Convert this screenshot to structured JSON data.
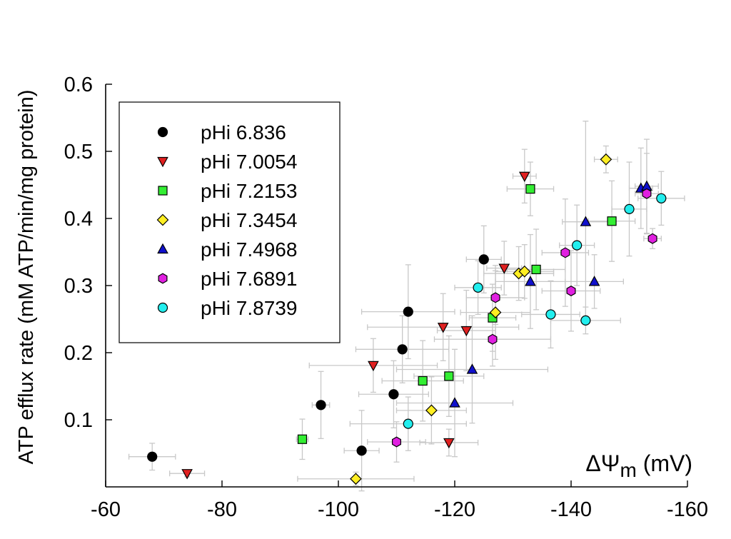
{
  "chart_data": {
    "type": "scatter",
    "title": "",
    "xlabel": "ΔΨm (mV)",
    "xlabel_main": "ΔΨ",
    "xlabel_sub": "m",
    "xlabel_unit": " (mV)",
    "ylabel": "ATP efflux rate (mM ATP/min/mg protein)",
    "xlim": [
      -60,
      -160
    ],
    "ylim": [
      0,
      0.6
    ],
    "x_ticks": [
      -60,
      -80,
      -100,
      -120,
      -140,
      -160
    ],
    "y_ticks": [
      0.1,
      0.2,
      0.3,
      0.4,
      0.5,
      0.6
    ],
    "x_tick_labels": [
      "-60",
      "-80",
      "-100",
      "-120",
      "-140",
      "-160"
    ],
    "y_tick_labels": [
      "0.1",
      "0.2",
      "0.3",
      "0.4",
      "0.5",
      "0.6"
    ],
    "grid": false,
    "legend_position": "top-left",
    "series": [
      {
        "name": "pHi 6.836",
        "marker": "circle",
        "color": "#000000",
        "points": [
          {
            "x": -68,
            "y": 0.045,
            "xerr": 4,
            "yerr": 0.02
          },
          {
            "x": -97,
            "y": 0.122,
            "xerr": 1.5,
            "yerr": 0.05
          },
          {
            "x": -104,
            "y": 0.054,
            "xerr": 3,
            "yerr": 0.06
          },
          {
            "x": -109.5,
            "y": 0.138,
            "xerr": 6,
            "yerr": 0.05
          },
          {
            "x": -111,
            "y": 0.205,
            "xerr": 8,
            "yerr": 0.05
          },
          {
            "x": -112,
            "y": 0.261,
            "xerr": 8,
            "yerr": 0.07
          },
          {
            "x": -125,
            "y": 0.339,
            "xerr": 3,
            "yerr": 0.05
          }
        ]
      },
      {
        "name": "pHi 7.0054",
        "marker": "triangle-down",
        "color": "#e02020",
        "points": [
          {
            "x": -74,
            "y": 0.02,
            "xerr": 3,
            "yerr": 0.005
          },
          {
            "x": -106,
            "y": 0.181,
            "xerr": 11,
            "yerr": 0.04
          },
          {
            "x": -118,
            "y": 0.238,
            "xerr": 13,
            "yerr": 0.05
          },
          {
            "x": -119,
            "y": 0.066,
            "xerr": 5,
            "yerr": 0.02
          },
          {
            "x": -122,
            "y": 0.233,
            "xerr": 5,
            "yerr": 0.06
          },
          {
            "x": -128.5,
            "y": 0.326,
            "xerr": 3,
            "yerr": 0.04
          },
          {
            "x": -132,
            "y": 0.463,
            "xerr": 2,
            "yerr": 0.04
          }
        ]
      },
      {
        "name": "pHi 7.2153",
        "marker": "square",
        "color": "#33ee33",
        "points": [
          {
            "x": -93.8,
            "y": 0.071,
            "xerr": 1,
            "yerr": 0.03
          },
          {
            "x": -114.5,
            "y": 0.158,
            "xerr": 7,
            "yerr": 0.06
          },
          {
            "x": -119,
            "y": 0.165,
            "xerr": 6,
            "yerr": 0.06
          },
          {
            "x": -126.5,
            "y": 0.252,
            "xerr": 4,
            "yerr": 0.05
          },
          {
            "x": -133,
            "y": 0.444,
            "xerr": 4,
            "yerr": 0.04
          },
          {
            "x": -134,
            "y": 0.324,
            "xerr": 5,
            "yerr": 0.06
          },
          {
            "x": -147,
            "y": 0.396,
            "xerr": 4,
            "yerr": 0.06
          }
        ]
      },
      {
        "name": "pHi 7.3454",
        "marker": "diamond",
        "color": "#ffee22",
        "points": [
          {
            "x": -103,
            "y": 0.012,
            "xerr": 10,
            "yerr": 0.01
          },
          {
            "x": -116,
            "y": 0.114,
            "xerr": 6,
            "yerr": 0.05
          },
          {
            "x": -127,
            "y": 0.26,
            "xerr": 6,
            "yerr": 0.07
          },
          {
            "x": -131,
            "y": 0.318,
            "xerr": 6,
            "yerr": 0.04
          },
          {
            "x": -132,
            "y": 0.321,
            "xerr": 5,
            "yerr": 0.04
          },
          {
            "x": -146,
            "y": 0.488,
            "xerr": 2,
            "yerr": 0.02
          }
        ]
      },
      {
        "name": "pHi 7.4968",
        "marker": "triangle-up",
        "color": "#1010cc",
        "points": [
          {
            "x": -120,
            "y": 0.125,
            "xerr": 10,
            "yerr": 0.08
          },
          {
            "x": -123,
            "y": 0.175,
            "xerr": 13,
            "yerr": 0.08
          },
          {
            "x": -133,
            "y": 0.306,
            "xerr": 6,
            "yerr": 0.07
          },
          {
            "x": -142.5,
            "y": 0.395,
            "xerr": 4,
            "yerr": 0.15
          },
          {
            "x": -144,
            "y": 0.306,
            "xerr": 5,
            "yerr": 0.04
          },
          {
            "x": -152,
            "y": 0.445,
            "xerr": 2,
            "yerr": 0.06
          },
          {
            "x": -153,
            "y": 0.448,
            "xerr": 2,
            "yerr": 0.07
          }
        ]
      },
      {
        "name": "pHi 7.6891",
        "marker": "hexagon",
        "color": "#e020e0",
        "points": [
          {
            "x": -110,
            "y": 0.067,
            "xerr": 5,
            "yerr": 0.03
          },
          {
            "x": -126.5,
            "y": 0.22,
            "xerr": 10,
            "yerr": 0.04
          },
          {
            "x": -127,
            "y": 0.282,
            "xerr": 5,
            "yerr": 0.04
          },
          {
            "x": -139,
            "y": 0.349,
            "xerr": 4,
            "yerr": 0.08
          },
          {
            "x": -140,
            "y": 0.292,
            "xerr": 5,
            "yerr": 0.06
          },
          {
            "x": -153,
            "y": 0.437,
            "xerr": 2,
            "yerr": 0.06
          },
          {
            "x": -154,
            "y": 0.37,
            "xerr": 1.5,
            "yerr": 0.015
          }
        ]
      },
      {
        "name": "pHi 7.8739",
        "marker": "circle",
        "color": "#22eeee",
        "points": [
          {
            "x": -112,
            "y": 0.094,
            "xerr": 10,
            "yerr": 0.04
          },
          {
            "x": -124,
            "y": 0.297,
            "xerr": 4,
            "yerr": 0.04
          },
          {
            "x": -136.5,
            "y": 0.257,
            "xerr": 5,
            "yerr": 0.05
          },
          {
            "x": -141,
            "y": 0.36,
            "xerr": 3,
            "yerr": 0.06
          },
          {
            "x": -142.5,
            "y": 0.248,
            "xerr": 6,
            "yerr": 0.02
          },
          {
            "x": -150,
            "y": 0.414,
            "xerr": 3,
            "yerr": 0.07
          },
          {
            "x": -155.5,
            "y": 0.43,
            "xerr": 4,
            "yerr": 0.04
          }
        ]
      }
    ]
  }
}
